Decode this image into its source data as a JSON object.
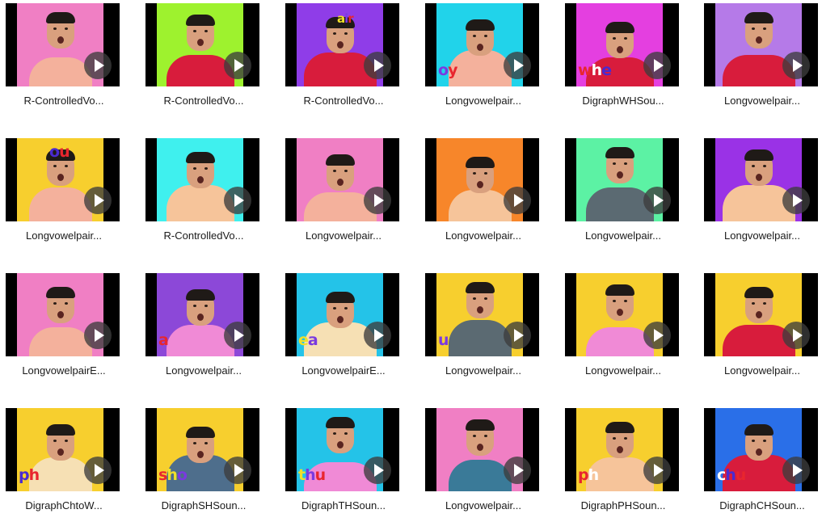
{
  "items": [
    {
      "label": "R-ControlledVo...",
      "bg": "#f07fc4",
      "shirt": "#f4b19c",
      "overlay": ""
    },
    {
      "label": "R-ControlledVo...",
      "bg": "#9ef22e",
      "shirt": "#d81c3c",
      "overlay": ""
    },
    {
      "label": "R-ControlledVo...",
      "bg": "#8f3de8",
      "shirt": "#d81c3c",
      "overlay": "air"
    },
    {
      "label": "Longvowelpair...",
      "bg": "#21d3ea",
      "shirt": "#f4b19c",
      "overlay": "oy"
    },
    {
      "label": "DigraphWHSou...",
      "bg": "#e43fe0",
      "shirt": "#d81c3c",
      "overlay": "whe"
    },
    {
      "label": "Longvowelpair...",
      "bg": "#b57ae8",
      "shirt": "#d81c3c",
      "overlay": ""
    },
    {
      "label": "Longvowelpair...",
      "bg": "#f7cf2e",
      "shirt": "#f4b19c",
      "overlay": "ou"
    },
    {
      "label": "R-ControlledVo...",
      "bg": "#3ff0ee",
      "shirt": "#f6c49a",
      "overlay": ""
    },
    {
      "label": "Longvowelpair...",
      "bg": "#f07fc4",
      "shirt": "#f4b19c",
      "overlay": ""
    },
    {
      "label": "Longvowelpair...",
      "bg": "#f7862a",
      "shirt": "#f6c49a",
      "overlay": ""
    },
    {
      "label": "Longvowelpair...",
      "bg": "#5cf2a4",
      "shirt": "#5b6a72",
      "overlay": ""
    },
    {
      "label": "Longvowelpair...",
      "bg": "#9a32e6",
      "shirt": "#f6c49a",
      "overlay": ""
    },
    {
      "label": "LongvowelpairE...",
      "bg": "#f07fc4",
      "shirt": "#f4b19c",
      "overlay": ""
    },
    {
      "label": "Longvowelpair...",
      "bg": "#8c48d8",
      "shirt": "#f08ad6",
      "overlay": "a"
    },
    {
      "label": "LongvowelpairE...",
      "bg": "#24c3e8",
      "shirt": "#f6e0b4",
      "overlay": "ea"
    },
    {
      "label": "Longvowelpair...",
      "bg": "#f7cf2e",
      "shirt": "#5b6a72",
      "overlay": "u"
    },
    {
      "label": "Longvowelpair...",
      "bg": "#f7cf2e",
      "shirt": "#f08ad6",
      "overlay": ""
    },
    {
      "label": "Longvowelpair...",
      "bg": "#f7cf2e",
      "shirt": "#d81c3c",
      "overlay": ""
    },
    {
      "label": "DigraphChtoW...",
      "bg": "#f7cf2e",
      "shirt": "#f6e0b4",
      "overlay": "ph"
    },
    {
      "label": "DigraphSHSoun...",
      "bg": "#f7cf2e",
      "shirt": "#4e6e8c",
      "overlay": "sho"
    },
    {
      "label": "DigraphTHSoun...",
      "bg": "#24c3e8",
      "shirt": "#f08ad6",
      "overlay": "thu"
    },
    {
      "label": "Longvowelpair...",
      "bg": "#f07fc4",
      "shirt": "#3a7a98",
      "overlay": ""
    },
    {
      "label": "DigraphPHSoun...",
      "bg": "#f7cf2e",
      "shirt": "#f6c49a",
      "overlay": "ph"
    },
    {
      "label": "DigraphCHSoun...",
      "bg": "#2a6fe8",
      "shirt": "#d81c3c",
      "overlay": "chu"
    }
  ]
}
